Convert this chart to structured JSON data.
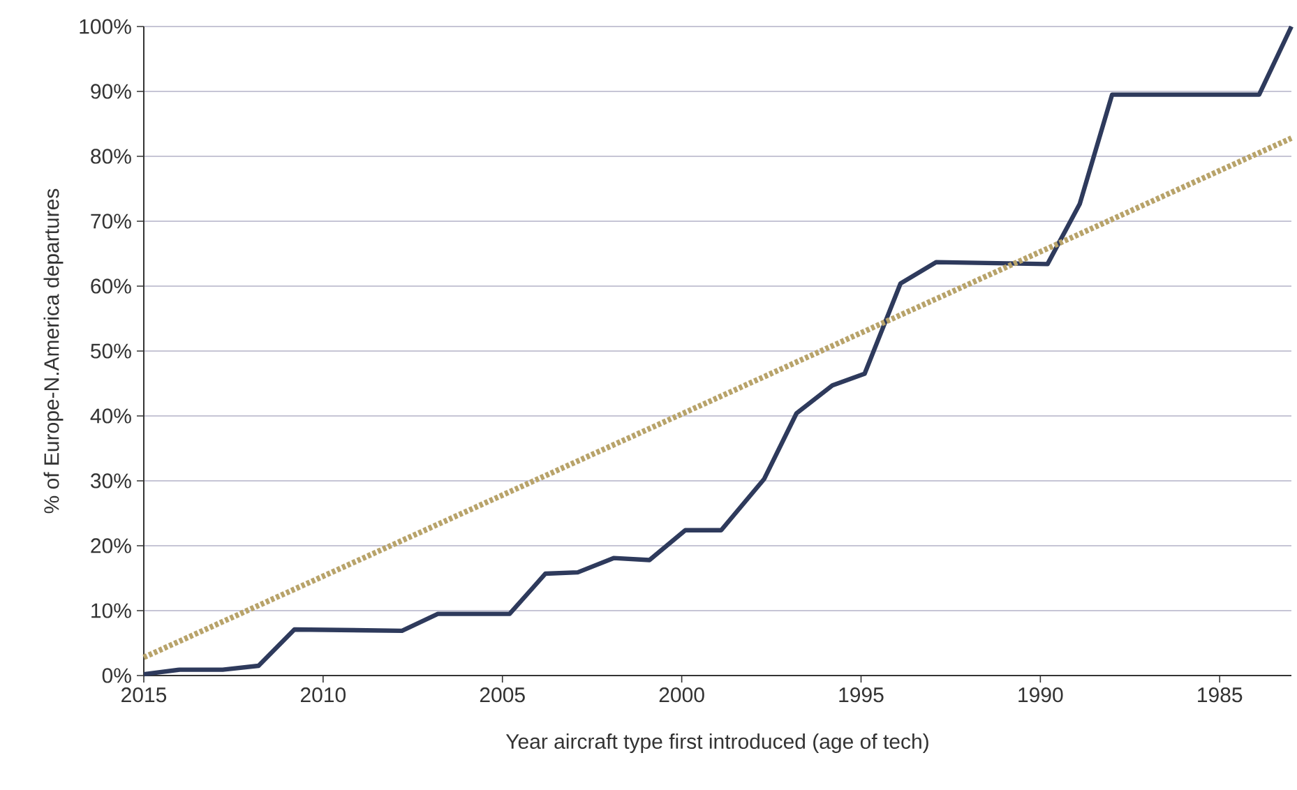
{
  "chart_data": {
    "type": "line",
    "xlabel": "Year aircraft type first introduced (age of tech)",
    "ylabel": "% of Europe-N.America departures",
    "xlim": [
      2015,
      1983
    ],
    "xticks": [
      2015,
      2010,
      2005,
      2000,
      1995,
      1990,
      1985
    ],
    "ylim": [
      0,
      100
    ],
    "yticks": [
      {
        "value": 0,
        "label": "0%"
      },
      {
        "value": 10,
        "label": "10%"
      },
      {
        "value": 20,
        "label": "20%"
      },
      {
        "value": 30,
        "label": "30%"
      },
      {
        "value": 40,
        "label": "40%"
      },
      {
        "value": 50,
        "label": "50%"
      },
      {
        "value": 60,
        "label": "60%"
      },
      {
        "value": 70,
        "label": "70%"
      },
      {
        "value": 80,
        "label": "80%"
      },
      {
        "value": 90,
        "label": "90%"
      },
      {
        "value": 100,
        "label": "100%"
      }
    ],
    "grid": "y",
    "series": [
      {
        "color": "#2e3a5c",
        "line_style": "solid",
        "x": [
          2015,
          2014,
          2012.8,
          2011.8,
          2010.8,
          2007.8,
          2006.8,
          2004.8,
          2003.8,
          2002.9,
          2001.9,
          2000.9,
          1999.9,
          1998.9,
          1997.7,
          1996.8,
          1995.8,
          1994.9,
          1993.9,
          1992.9,
          1989.8,
          1988.9,
          1988.0,
          1983.9,
          1983.0
        ],
        "values": [
          0.2,
          0.9,
          0.9,
          1.5,
          7.1,
          6.9,
          9.5,
          9.5,
          15.7,
          15.9,
          18.1,
          17.8,
          22.4,
          22.4,
          30.3,
          40.4,
          44.7,
          46.5,
          60.4,
          63.7,
          63.4,
          72.7,
          89.5,
          89.5,
          100
        ]
      },
      {
        "color": "#b8a36a",
        "line_style": "dotted",
        "x": [
          2015,
          1983
        ],
        "values": [
          2.8,
          82.8
        ]
      }
    ]
  }
}
